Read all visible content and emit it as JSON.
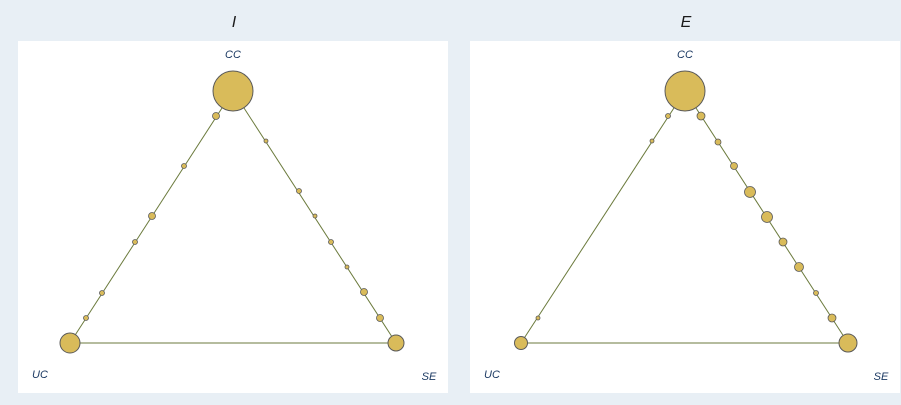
{
  "panels": [
    {
      "title": "I",
      "label_top": "CC",
      "label_left": "UC",
      "label_right": "SE"
    },
    {
      "title": "E",
      "label_top": "CC",
      "label_left": "UC",
      "label_right": "SE"
    }
  ],
  "colors": {
    "background": "#e8eff5",
    "panel": "#ffffff",
    "edge": "#6b7a3c",
    "node_fill": "#d9bb5a",
    "node_stroke": "#5a5a5a",
    "label": "#1c3a63"
  },
  "chart_data": [
    {
      "type": "network",
      "title": "I",
      "nodes": [
        {
          "name": "CC",
          "size": "large"
        },
        {
          "name": "UC",
          "size": "medium"
        },
        {
          "name": "SE",
          "size": "medium"
        }
      ],
      "edges": [
        {
          "from": "CC",
          "to": "UC",
          "marker_count": 8
        },
        {
          "from": "CC",
          "to": "SE",
          "marker_count": 9
        },
        {
          "from": "UC",
          "to": "SE",
          "marker_count": 0
        }
      ]
    },
    {
      "type": "network",
      "title": "E",
      "nodes": [
        {
          "name": "CC",
          "size": "large"
        },
        {
          "name": "UC",
          "size": "small"
        },
        {
          "name": "SE",
          "size": "medium"
        }
      ],
      "edges": [
        {
          "from": "CC",
          "to": "UC",
          "marker_count": 3
        },
        {
          "from": "CC",
          "to": "SE",
          "marker_count": 10
        },
        {
          "from": "UC",
          "to": "SE",
          "marker_count": 0
        }
      ]
    }
  ]
}
